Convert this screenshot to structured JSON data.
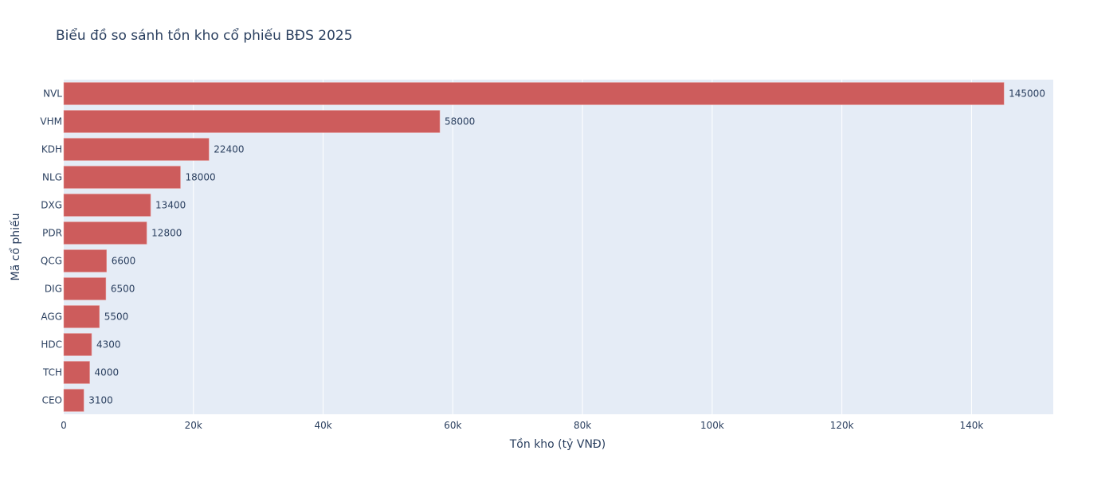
{
  "chart_data": {
    "type": "bar",
    "orientation": "horizontal",
    "title": "Biểu đồ so sánh tồn kho cổ phiếu BĐS 2025",
    "xlabel": "Tồn kho (tỷ VNĐ)",
    "ylabel": "Mã cổ phiếu",
    "categories": [
      "NVL",
      "VHM",
      "KDH",
      "NLG",
      "DXG",
      "PDR",
      "QCG",
      "DIG",
      "AGG",
      "HDC",
      "TCH",
      "CEO"
    ],
    "values": [
      145000,
      58000,
      22400,
      18000,
      13400,
      12800,
      6600,
      6500,
      5500,
      4300,
      4000,
      3100
    ],
    "data_labels": [
      "145000",
      "58000",
      "22400",
      "18000",
      "13400",
      "12800",
      "6600",
      "6500",
      "5500",
      "4300",
      "4000",
      "3100"
    ],
    "xlim": [
      0,
      152600
    ],
    "xticks": [
      0,
      20000,
      40000,
      60000,
      80000,
      100000,
      120000,
      140000
    ],
    "xtick_labels": [
      "0",
      "20k",
      "40k",
      "60k",
      "80k",
      "100k",
      "120k",
      "140k"
    ],
    "grid": true,
    "colors": {
      "bar": "#cd5c5c",
      "bar_outline": "#e8a0a0",
      "plot_bg": "#e5ecf6",
      "grid": "#ffffff",
      "text": "#2a3f5f"
    }
  }
}
